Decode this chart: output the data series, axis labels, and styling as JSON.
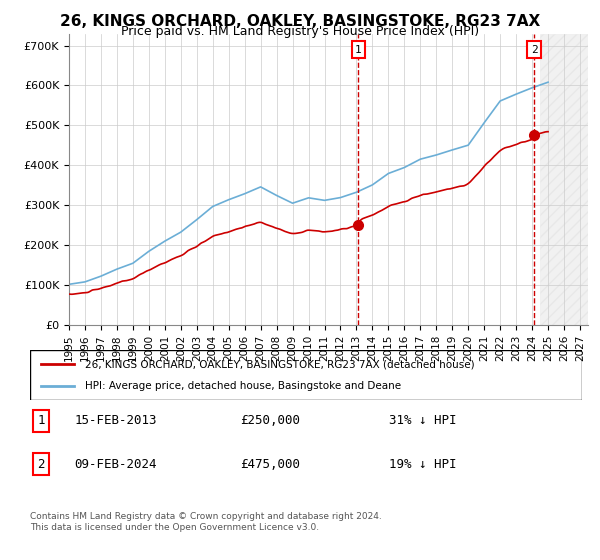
{
  "title": "26, KINGS ORCHARD, OAKLEY, BASINGSTOKE, RG23 7AX",
  "subtitle": "Price paid vs. HM Land Registry's House Price Index (HPI)",
  "ylabel": "",
  "xlim_start": 1995.0,
  "xlim_end": 2027.5,
  "ylim_min": 0,
  "ylim_max": 730000,
  "yticks": [
    0,
    100000,
    200000,
    300000,
    400000,
    500000,
    600000,
    700000
  ],
  "ytick_labels": [
    "£0",
    "£100K",
    "£200K",
    "£300K",
    "£400K",
    "£500K",
    "£600K",
    "£700K"
  ],
  "xticks": [
    1995,
    1996,
    1997,
    1998,
    1999,
    2000,
    2001,
    2002,
    2003,
    2004,
    2005,
    2006,
    2007,
    2008,
    2009,
    2010,
    2011,
    2012,
    2013,
    2014,
    2015,
    2016,
    2017,
    2018,
    2019,
    2020,
    2021,
    2022,
    2023,
    2024,
    2025,
    2026,
    2027
  ],
  "red_line_label": "26, KINGS ORCHARD, OAKLEY, BASINGSTOKE, RG23 7AX (detached house)",
  "blue_line_label": "HPI: Average price, detached house, Basingstoke and Deane",
  "sale1_date": "15-FEB-2013",
  "sale1_price": 250000,
  "sale1_pct": "31% ↓ HPI",
  "sale1_year": 2013.12,
  "sale2_date": "09-FEB-2024",
  "sale2_price": 475000,
  "sale2_pct": "19% ↓ HPI",
  "sale2_year": 2024.12,
  "footer": "Contains HM Land Registry data © Crown copyright and database right 2024.\nThis data is licensed under the Open Government Licence v3.0.",
  "hpi_color": "#6baed6",
  "price_color": "#cc0000",
  "hatch_color": "#e8e8e8",
  "background_color": "#ffffff",
  "grid_color": "#cccccc"
}
